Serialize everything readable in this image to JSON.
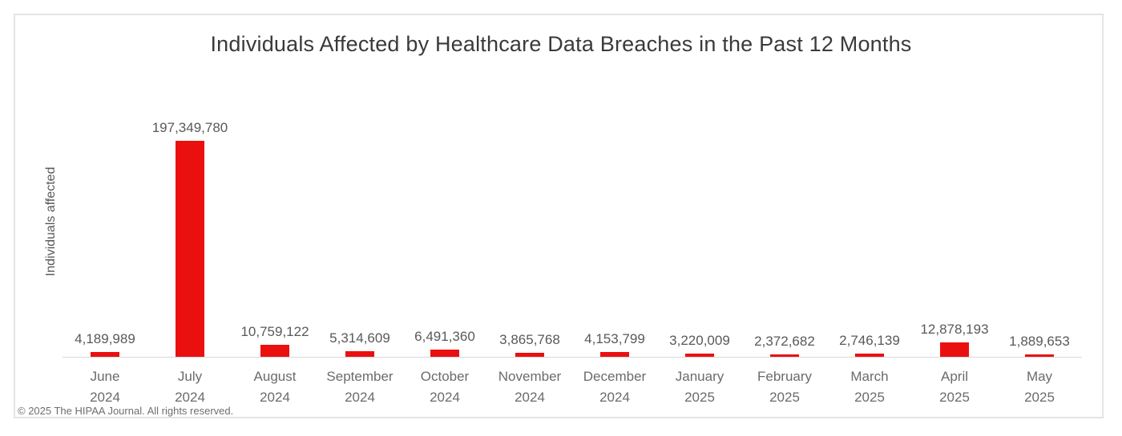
{
  "page": {
    "footer": "© 2025 The HIPAA Journal. All rights reserved."
  },
  "chart_data": {
    "type": "bar",
    "title": "Individuals Affected by Healthcare Data Breaches in the Past 12 Months",
    "xlabel": "",
    "ylabel": "Individuals affected",
    "categories": [
      "June 2024",
      "July 2024",
      "August 2024",
      "September 2024",
      "October 2024",
      "November 2024",
      "December 2024",
      "January 2025",
      "February 2025",
      "March 2025",
      "April 2025",
      "May 2025"
    ],
    "x_ticks": [
      {
        "month": "June",
        "year": "2024"
      },
      {
        "month": "July",
        "year": "2024"
      },
      {
        "month": "August",
        "year": "2024"
      },
      {
        "month": "September",
        "year": "2024"
      },
      {
        "month": "October",
        "year": "2024"
      },
      {
        "month": "November",
        "year": "2024"
      },
      {
        "month": "December",
        "year": "2024"
      },
      {
        "month": "January",
        "year": "2025"
      },
      {
        "month": "February",
        "year": "2025"
      },
      {
        "month": "March",
        "year": "2025"
      },
      {
        "month": "April",
        "year": "2025"
      },
      {
        "month": "May",
        "year": "2025"
      }
    ],
    "values": [
      4189989,
      197349780,
      10759122,
      5314609,
      6491360,
      3865768,
      4153799,
      3220009,
      2372682,
      2746139,
      12878193,
      1889653
    ],
    "value_labels": [
      "4,189,989",
      "197,349,780",
      "10,759,122",
      "5,314,609",
      "6,491,360",
      "3,865,768",
      "4,153,799",
      "3,220,009",
      "2,372,682",
      "2,746,139",
      "12,878,193",
      "1,889,653"
    ],
    "ylim": [
      0,
      197349780
    ],
    "grid": false,
    "legend": false,
    "colors": {
      "bar": "#eb1010",
      "axis_line": "#d9d9d9",
      "value_label": "#595959",
      "tick_label": "#6b6b6b",
      "title": "#3a3a3a",
      "frame_border": "#e4e4e4"
    }
  }
}
